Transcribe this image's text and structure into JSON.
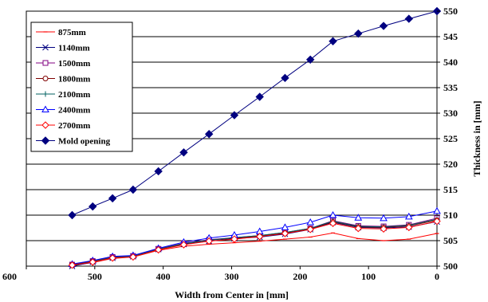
{
  "chart_data": {
    "type": "line",
    "xlabel": "Width from Center in [mm]",
    "ylabel": "Thickness in [mm]",
    "xlim": [
      600,
      0
    ],
    "ylim": [
      500,
      550
    ],
    "x_ticks": [
      600,
      500,
      400,
      300,
      200,
      100,
      0
    ],
    "y_ticks": [
      500,
      505,
      510,
      515,
      520,
      525,
      530,
      535,
      540,
      545,
      550
    ],
    "x_tick_labels": [
      "600",
      "500",
      "400",
      "300",
      "200",
      "100",
      "0"
    ],
    "y_tick_labels": [
      "500",
      "505",
      "510",
      "515",
      "520",
      "525",
      "530",
      "535",
      "540",
      "545",
      "550"
    ],
    "grid": "horizontal",
    "legend_position": "top-left",
    "x": [
      533,
      503,
      474,
      444,
      407,
      370,
      333,
      296,
      259,
      222,
      185,
      152,
      115,
      78,
      41,
      0
    ],
    "series": [
      {
        "name": "875mm",
        "color": "#ff0000",
        "marker": "dash",
        "values": [
          500.1,
          500.7,
          501.5,
          501.8,
          503.1,
          503.9,
          504.3,
          504.6,
          504.9,
          505.3,
          505.7,
          506.5,
          505.4,
          505.0,
          505.3,
          506.4
        ]
      },
      {
        "name": "1140mm",
        "color": "#000080",
        "marker": "x",
        "values": [
          500.0,
          500.8,
          501.6,
          501.9,
          503.3,
          504.3,
          504.9,
          505.4,
          505.7,
          506.3,
          507.2,
          508.6,
          507.6,
          507.5,
          507.7,
          508.7
        ]
      },
      {
        "name": "1500mm",
        "color": "#800080",
        "marker": "square",
        "values": [
          500.3,
          501.0,
          501.8,
          502.0,
          503.4,
          504.5,
          505.2,
          505.6,
          506.0,
          506.6,
          507.4,
          508.9,
          507.9,
          507.8,
          508.1,
          509.4
        ]
      },
      {
        "name": "1800mm",
        "color": "#800000",
        "marker": "circle",
        "values": [
          500.3,
          501.0,
          501.7,
          501.9,
          503.3,
          504.4,
          505.1,
          505.5,
          505.9,
          506.5,
          507.3,
          508.7,
          507.7,
          507.6,
          507.9,
          509.0
        ]
      },
      {
        "name": "2100mm",
        "color": "#006060",
        "marker": "plus",
        "values": [
          500.2,
          500.9,
          501.7,
          501.9,
          503.3,
          504.4,
          505.1,
          505.6,
          506.0,
          506.6,
          507.4,
          508.8,
          507.8,
          507.7,
          508.0,
          509.2
        ]
      },
      {
        "name": "2400mm",
        "color": "#0000ff",
        "marker": "triangle",
        "values": [
          500.4,
          501.1,
          501.9,
          502.1,
          503.5,
          504.7,
          505.5,
          506.1,
          506.8,
          507.6,
          508.6,
          510.0,
          509.5,
          509.4,
          509.7,
          510.8
        ]
      },
      {
        "name": "2700mm",
        "color": "#ff0000",
        "marker": "diamond-open",
        "values": [
          500.2,
          500.8,
          501.6,
          501.8,
          503.2,
          504.2,
          504.9,
          505.3,
          505.8,
          506.4,
          507.2,
          508.4,
          507.4,
          507.3,
          507.6,
          508.8
        ]
      },
      {
        "name": "Mold opening",
        "color": "#000080",
        "marker": "diamond-filled",
        "values": [
          510.0,
          511.7,
          513.3,
          515.0,
          518.6,
          522.3,
          525.9,
          529.6,
          533.2,
          536.9,
          540.5,
          544.1,
          545.6,
          547.1,
          548.5,
          550.0
        ]
      }
    ]
  }
}
